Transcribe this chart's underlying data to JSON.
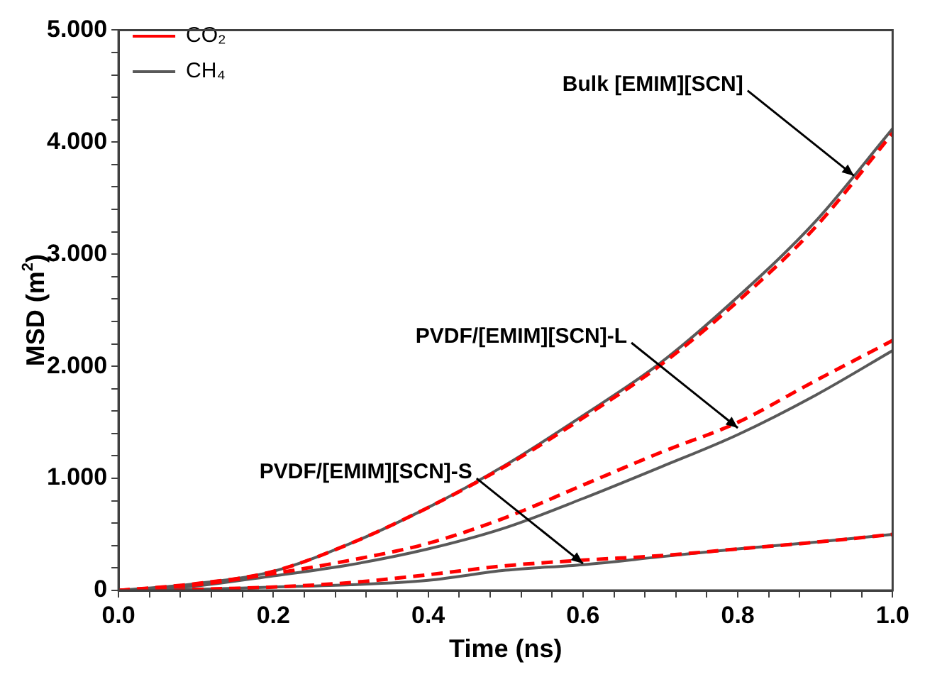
{
  "chart_data": {
    "type": "line",
    "xlabel": "Time (ns)",
    "ylabel": "MSD (m$^{2}$)",
    "x": [
      0,
      0.1,
      0.2,
      0.3,
      0.4,
      0.5,
      0.6,
      0.7,
      0.8,
      0.9,
      1.0
    ],
    "series": [
      {
        "name": "CO₂",
        "color": "#ff0000",
        "line_style": "dashed",
        "values": [
          0,
          0.06,
          0.17,
          0.42,
          0.74,
          1.11,
          1.54,
          2.01,
          2.58,
          3.24,
          4.08
        ]
      },
      {
        "name": "CH₄",
        "color": "#595959",
        "line_style": "solid",
        "values": [
          0,
          0.06,
          0.17,
          0.42,
          0.74,
          1.12,
          1.56,
          2.03,
          2.62,
          3.29,
          4.12
        ]
      },
      {
        "color": "#ff0000",
        "line_style": "dashed",
        "values": [
          0,
          0.05,
          0.15,
          0.27,
          0.42,
          0.65,
          0.94,
          1.23,
          1.5,
          1.87,
          2.23
        ]
      },
      {
        "color": "#595959",
        "line_style": "solid",
        "values": [
          0,
          0.04,
          0.13,
          0.23,
          0.37,
          0.56,
          0.82,
          1.1,
          1.39,
          1.74,
          2.14
        ]
      },
      {
        "color": "#ff0000",
        "line_style": "dashed",
        "values": [
          0,
          0.01,
          0.03,
          0.07,
          0.14,
          0.22,
          0.27,
          0.31,
          0.37,
          0.43,
          0.5
        ]
      },
      {
        "color": "#595959",
        "line_style": "solid",
        "values": [
          0,
          0.01,
          0.03,
          0.05,
          0.09,
          0.18,
          0.23,
          0.3,
          0.37,
          0.43,
          0.5
        ]
      }
    ],
    "xlim": [
      0,
      1.0
    ],
    "xticks": [
      {
        "value": 0,
        "label": "0.0"
      },
      {
        "value": 0.04,
        "label": null
      },
      {
        "value": 0.08,
        "label": null
      },
      {
        "value": 0.12,
        "label": null
      },
      {
        "value": 0.16,
        "label": null
      },
      {
        "value": 0.2,
        "label": "0.2"
      },
      {
        "value": 0.24,
        "label": null
      },
      {
        "value": 0.28,
        "label": null
      },
      {
        "value": 0.32,
        "label": null
      },
      {
        "value": 0.36,
        "label": null
      },
      {
        "value": 0.4,
        "label": "0.4"
      },
      {
        "value": 0.44,
        "label": null
      },
      {
        "value": 0.48,
        "label": null
      },
      {
        "value": 0.52,
        "label": null
      },
      {
        "value": 0.56,
        "label": null
      },
      {
        "value": 0.6,
        "label": "0.6"
      },
      {
        "value": 0.64,
        "label": null
      },
      {
        "value": 0.68,
        "label": null
      },
      {
        "value": 0.72,
        "label": null
      },
      {
        "value": 0.76,
        "label": null
      },
      {
        "value": 0.8,
        "label": "0.8"
      },
      {
        "value": 0.84,
        "label": null
      },
      {
        "value": 0.88,
        "label": null
      },
      {
        "value": 0.92,
        "label": null
      },
      {
        "value": 0.96,
        "label": null
      },
      {
        "value": 1.0,
        "label": "1.0"
      }
    ],
    "ylim": [
      0,
      5
    ],
    "yticks": [
      0,
      {
        "value": 0.2,
        "label": null
      },
      {
        "value": 0.4,
        "label": null
      },
      {
        "value": 0.6,
        "label": null
      },
      {
        "value": 0.8,
        "label": null
      },
      {
        "value": 1,
        "label": "1.000"
      },
      {
        "value": 1.2,
        "label": null
      },
      {
        "value": 1.4,
        "label": null
      },
      {
        "value": 1.6,
        "label": null
      },
      {
        "value": 1.8,
        "label": null
      },
      {
        "value": 2,
        "label": "2.000"
      },
      {
        "value": 2.2,
        "label": null
      },
      {
        "value": 2.4,
        "label": null
      },
      {
        "value": 2.6,
        "label": null
      },
      {
        "value": 2.8,
        "label": null
      },
      {
        "value": 3,
        "label": "3.000"
      },
      {
        "value": 3.2,
        "label": null
      },
      {
        "value": 3.4,
        "label": null
      },
      {
        "value": 3.6,
        "label": null
      },
      {
        "value": 3.8,
        "label": null
      },
      {
        "value": 4,
        "label": "4.000"
      },
      {
        "value": 4.2,
        "label": null
      },
      {
        "value": 4.4,
        "label": null
      },
      {
        "value": 4.6,
        "label": null
      },
      {
        "value": 4.8,
        "label": null
      },
      {
        "value": 5,
        "label": "5.000"
      }
    ],
    "annotations": [
      {
        "text": "Bulk [EMIM][SCN]",
        "x": 0.95,
        "y": 3.7
      },
      {
        "text": "PVDF/[EMIM][SCN]-L",
        "x": 0.8,
        "y": 1.45
      },
      {
        "text": "PVDF/[EMIM][SCN]-S",
        "x": 0.6,
        "y": 0.24
      }
    ],
    "grid": false,
    "legend": "top left",
    "marker": "none"
  }
}
